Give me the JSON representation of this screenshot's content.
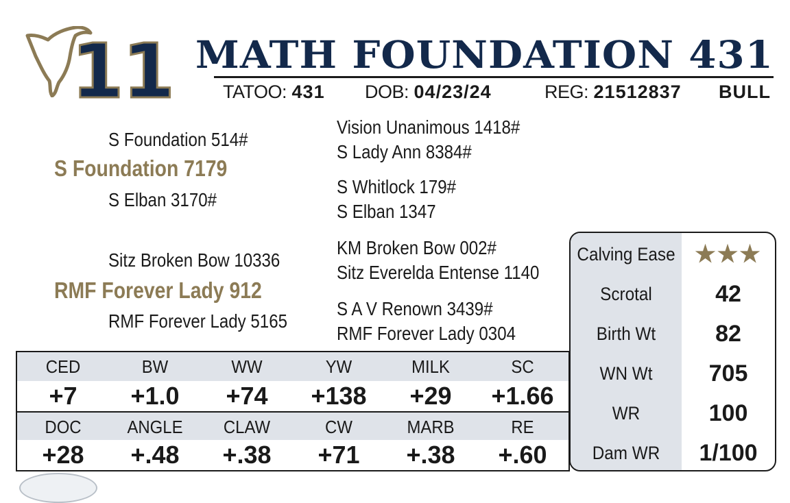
{
  "lot_number": "11",
  "animal_name": "MATH FOUNDATION 431",
  "id_line": {
    "tattoo_label": "TATOO:",
    "tattoo": "431",
    "dob_label": "DOB:",
    "dob": "04/23/24",
    "reg_label": "REG:",
    "reg": "21512837",
    "sex": "BULL"
  },
  "pedigree": {
    "sire": "S Foundation 7179",
    "sire_sire": "S Foundation 514#",
    "sire_dam": "S Elban 3170#",
    "sire_sire_sire": "Vision Unanimous 1418#",
    "sire_sire_dam": "S Lady Ann 8384#",
    "sire_dam_sire": "S Whitlock 179#",
    "sire_dam_dam": "S Elban 1347",
    "dam": "RMF Forever Lady 912",
    "dam_sire": "Sitz Broken Bow 10336",
    "dam_dam": "RMF Forever Lady 5165",
    "dam_sire_sire": "KM Broken Bow 002#",
    "dam_sire_dam": "Sitz Everelda Entense 1140",
    "dam_dam_sire": "S A V Renown 3439#",
    "dam_dam_dam": "RMF Forever Lady 0304"
  },
  "stats": [
    {
      "label": "Calving Ease",
      "value": "★★★"
    },
    {
      "label": "Scrotal",
      "value": "42"
    },
    {
      "label": "Birth Wt",
      "value": "82"
    },
    {
      "label": "WN Wt",
      "value": "705"
    },
    {
      "label": "WR",
      "value": "100"
    },
    {
      "label": "Dam WR",
      "value": "1/100"
    }
  ],
  "epd_row1": {
    "headers": [
      "CED",
      "BW",
      "WW",
      "YW",
      "MILK",
      "SC"
    ],
    "values": [
      "+7",
      "+1.0",
      "+74",
      "+138",
      "+29",
      "+1.66"
    ]
  },
  "epd_row2": {
    "headers": [
      "DOC",
      "ANGLE",
      "CLAW",
      "CW",
      "MARB",
      "RE"
    ],
    "values": [
      "+28",
      "+.48",
      "+.38",
      "+71",
      "+.38",
      "+.60"
    ]
  },
  "colors": {
    "navy": "#13294b",
    "gold": "#8c7b55",
    "label_bg": "#dfe3e9"
  },
  "icons": {
    "logo": "cow-head-outline-icon"
  }
}
